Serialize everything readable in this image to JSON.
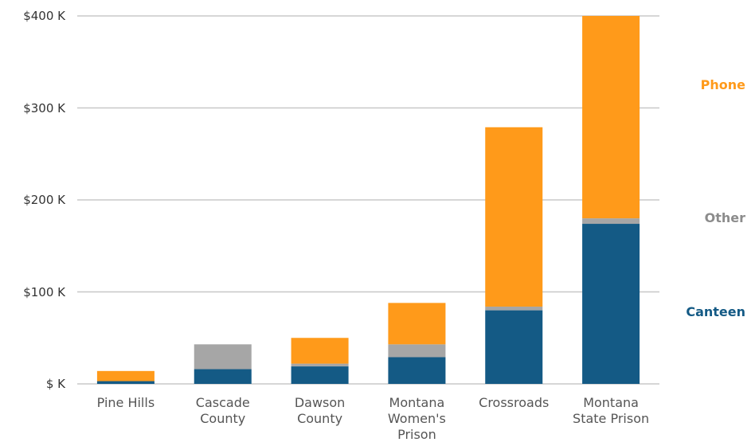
{
  "chart_data": {
    "type": "bar",
    "stacked": true,
    "categories": [
      "Pine Hills",
      "Cascade County",
      "Dawson County",
      "Montana Women's Prison",
      "Crossroads",
      "Montana State Prison"
    ],
    "category_labels": [
      "Pine Hills",
      "Cascade\nCounty",
      "Dawson\nCounty",
      "Montana\nWomen's\nPrison",
      "Crossroads",
      "Montana\nState Prison"
    ],
    "series": [
      {
        "name": "Canteen",
        "color": "#145a85",
        "values": [
          3,
          16,
          19,
          29,
          80,
          174
        ]
      },
      {
        "name": "Other",
        "color": "#a6a6a6",
        "values": [
          0,
          27,
          3,
          14,
          4,
          6
        ]
      },
      {
        "name": "Phone",
        "color": "#ff9a1a",
        "values": [
          11,
          0,
          28,
          45,
          195,
          220
        ]
      }
    ],
    "yticks": [
      0,
      100,
      200,
      300,
      400
    ],
    "ytick_labels": [
      "$ K",
      "$100 K",
      "$200 K",
      "$300 K",
      "$400 K"
    ],
    "ylim": [
      0,
      400
    ],
    "grid": true,
    "legend_position": "right",
    "legend_order": [
      "Phone",
      "Other",
      "Canteen"
    ],
    "legend_label_values": [
      325,
      180,
      78
    ]
  }
}
